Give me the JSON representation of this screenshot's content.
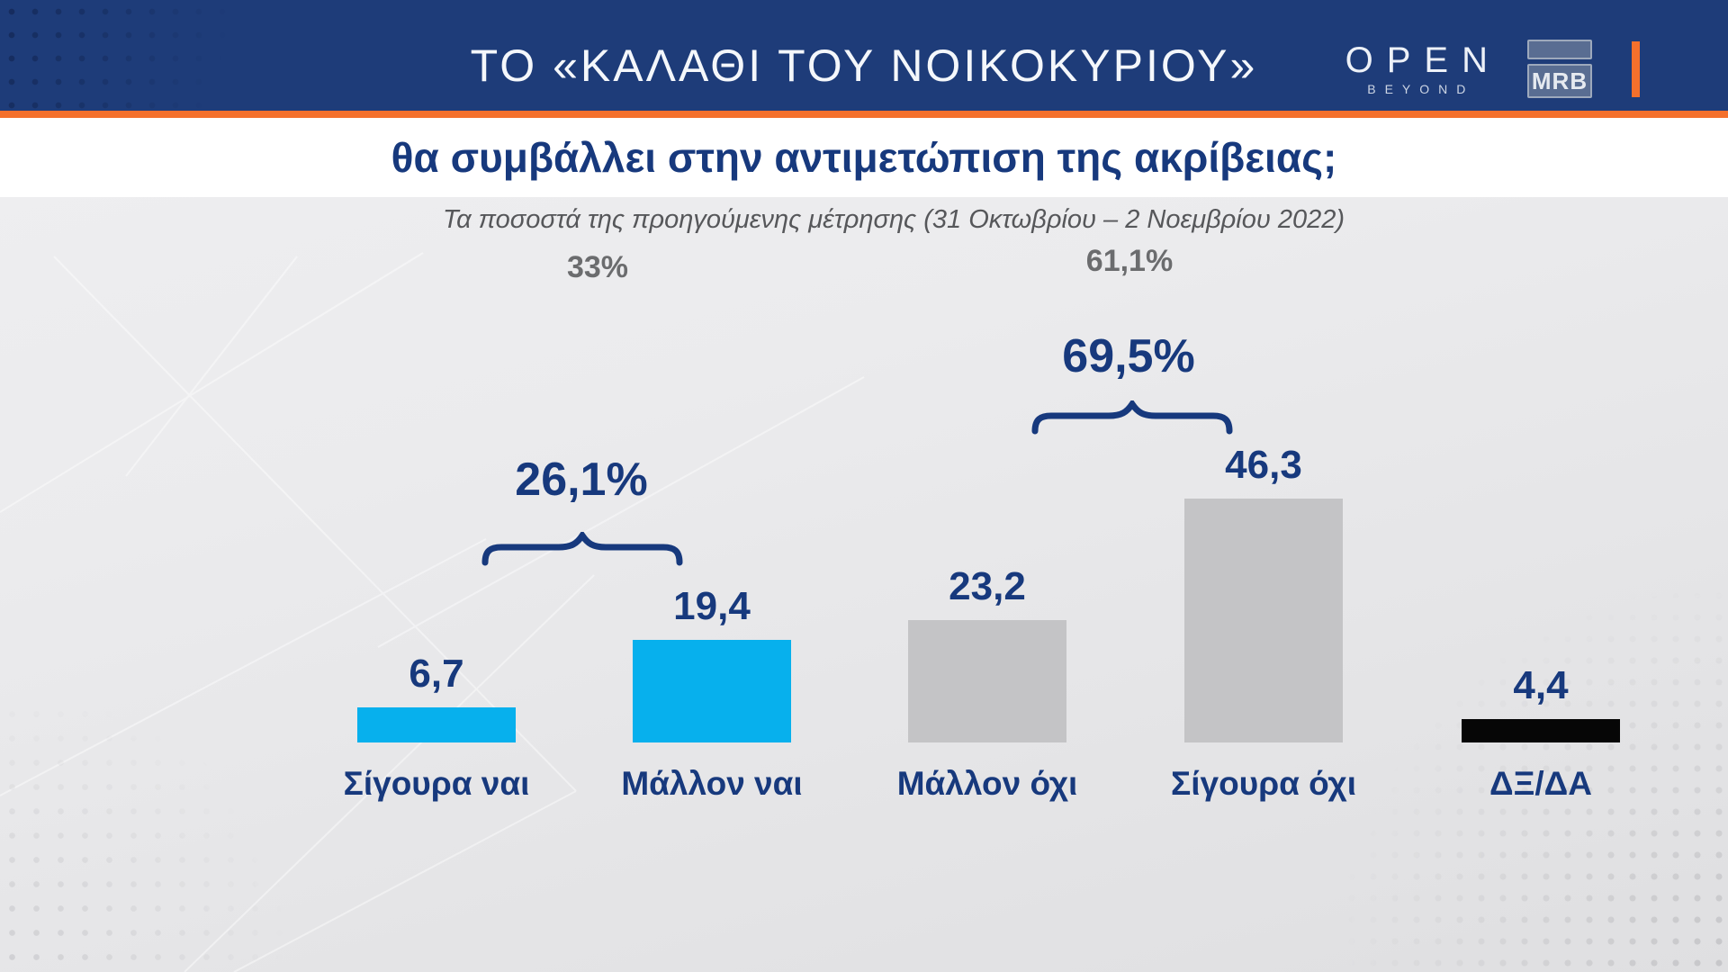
{
  "header": {
    "title": "ΤΟ «ΚΑΛΑΘΙ ΤΟΥ ΝΟΙΚΟΚΥΡΙΟΥ»",
    "open_logo": {
      "wordmark": "OPEN",
      "tagline": "BEYOND"
    },
    "mrb_logo": "MRB"
  },
  "question": "θα συμβάλλει στην αντιμετώπιση της ακρίβειας;",
  "note": "Τα ποσοστά της προηγούμενης μέτρησης (31 Οκτωβρίου – 2 Νοεμβρίου 2022)",
  "chart_data": {
    "type": "bar",
    "title": "ΤΟ «ΚΑΛΑΘΙ ΤΟΥ ΝΟΙΚΟΚΥΡΙΟΥ» θα συμβάλλει στην αντιμετώπιση της ακρίβειας;",
    "categories": [
      "Σίγουρα ναι",
      "Μάλλον ναι",
      "Μάλλον όχι",
      "Σίγουρα όχι",
      "ΔΞ/ΔΑ"
    ],
    "values": [
      6.7,
      19.4,
      23.2,
      46.3,
      4.4
    ],
    "value_labels": [
      "6,7",
      "19,4",
      "23,2",
      "46,3",
      "4,4"
    ],
    "bar_colors": [
      "#07b0ed",
      "#07b0ed",
      "#c4c4c6",
      "#c4c4c6",
      "#060606"
    ],
    "groups": [
      {
        "label": "26,1%",
        "bars": [
          "Σίγουρα ναι",
          "Μάλλον ναι"
        ],
        "previous": "33%"
      },
      {
        "label": "69,5%",
        "bars": [
          "Μάλλον όχι",
          "Σίγουρα όχι"
        ],
        "previous": "61,1%"
      }
    ],
    "annotations": {
      "previous_yes_total": "33%",
      "previous_no_total": "61,1%",
      "note": "Τα ποσοστά της προηγούμενης μέτρησης (31 Οκτωβρίου – 2 Νοεμβρίου 2022)"
    },
    "xlabel": "",
    "ylabel": "",
    "ylim": [
      0,
      50
    ],
    "grid": false,
    "legend": false
  },
  "colors": {
    "header_navy": "#1e3c79",
    "accent_orange": "#f4702c",
    "text_navy": "#17397d",
    "bar_cyan": "#07b0ed",
    "bar_gray": "#c4c4c6",
    "bar_black": "#060606",
    "note_gray": "#56575a",
    "prev_gray": "#6b6c6e"
  }
}
